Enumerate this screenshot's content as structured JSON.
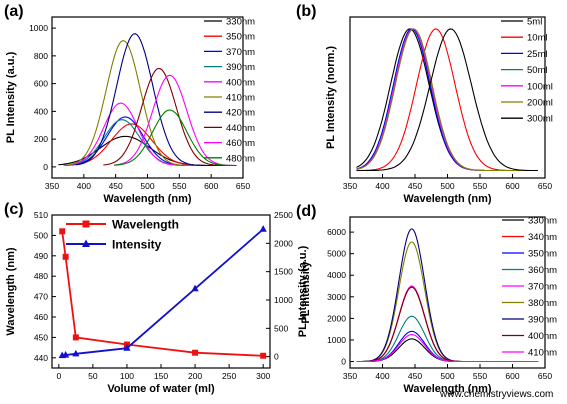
{
  "watermark": "www.chemistryviews.com",
  "colors": [
    "#000000",
    "#ff0000",
    "#0000ff",
    "#008080",
    "#ff00ff",
    "#808000",
    "#000080",
    "#800000",
    "#008000"
  ],
  "chart_data": [
    {
      "panel": "(a)",
      "type": "line",
      "xlabel": "Wavelength (nm)",
      "ylabel": "PL Intensity (a.u.)",
      "xlim": [
        350,
        650
      ],
      "ylim": [
        -80,
        1080
      ],
      "xticks": [
        350,
        400,
        450,
        500,
        550,
        600,
        650
      ],
      "yticks": [
        0,
        200,
        400,
        600,
        800,
        1000
      ],
      "legend_position": "top-right",
      "series": [
        {
          "name": "330nm",
          "color": "#000000",
          "peak": 465,
          "amp": 210,
          "w": 55
        },
        {
          "name": "350nm",
          "color": "#ff0000",
          "peak": 475,
          "amp": 300,
          "w": 45
        },
        {
          "name": "370nm",
          "color": "#0000ff",
          "peak": 465,
          "amp": 350,
          "w": 40
        },
        {
          "name": "390nm",
          "color": "#008080",
          "peak": 460,
          "amp": 330,
          "w": 40
        },
        {
          "name": "400nm",
          "color": "#ff00ff",
          "peak": 458,
          "amp": 450,
          "w": 38
        },
        {
          "name": "410nm",
          "color": "#808000",
          "peak": 462,
          "amp": 900,
          "w": 38
        },
        {
          "name": "420nm",
          "color": "#000080",
          "peak": 480,
          "amp": 950,
          "w": 40
        },
        {
          "name": "440nm",
          "color": "#800000",
          "peak": 518,
          "amp": 700,
          "w": 38
        },
        {
          "name": "460nm",
          "color": "#ff00ff",
          "peak": 535,
          "amp": 650,
          "w": 38
        },
        {
          "name": "480nm",
          "color": "#008000",
          "peak": 535,
          "amp": 400,
          "w": 38
        }
      ]
    },
    {
      "panel": "(b)",
      "type": "line",
      "xlabel": "Wavelength (nm)",
      "ylabel": "PL Intensity (norm.)",
      "xlim": [
        350,
        650
      ],
      "ylim": [
        0,
        1.08
      ],
      "xticks": [
        350,
        400,
        450,
        500,
        550,
        600,
        650
      ],
      "legend_position": "top-right",
      "series": [
        {
          "name": "5ml",
          "color": "#000000",
          "peak": 442,
          "w": 42
        },
        {
          "name": "10ml",
          "color": "#ff0000",
          "peak": 482,
          "w": 42
        },
        {
          "name": "25ml",
          "color": "#0000ff",
          "peak": 445,
          "w": 40
        },
        {
          "name": "50ml",
          "color": "#008080",
          "peak": 447,
          "w": 40
        },
        {
          "name": "100ml",
          "color": "#ff00ff",
          "peak": 447,
          "w": 40
        },
        {
          "name": "200ml",
          "color": "#808000",
          "peak": 448,
          "w": 40
        },
        {
          "name": "300ml",
          "color": "#000000",
          "peak": 505,
          "w": 45
        }
      ]
    },
    {
      "panel": "(c)",
      "type": "line",
      "xlabel": "Volume of water (ml)",
      "ylabel": "Wavelength (nm)",
      "y2label": "PL Intensity (a.u.)",
      "xlim": [
        -10,
        310
      ],
      "ylim": [
        435,
        510
      ],
      "y2lim": [
        -200,
        2500
      ],
      "xticks": [
        0,
        50,
        100,
        150,
        200,
        250,
        300
      ],
      "yticks": [
        440,
        450,
        460,
        470,
        480,
        490,
        500,
        510
      ],
      "y2ticks": [
        0,
        500,
        1000,
        1500,
        2000,
        2500
      ],
      "legend_position": "top-left",
      "series": [
        {
          "name": "Wavelength",
          "color": "#ee1111",
          "marker": "square",
          "axis": "left",
          "x": [
            5,
            10,
            25,
            100,
            200,
            300
          ],
          "y": [
            502,
            489.5,
            450,
            446.5,
            442.5,
            441
          ]
        },
        {
          "name": "Intensity",
          "color": "#1111cc",
          "marker": "triangle",
          "axis": "right",
          "x": [
            5,
            10,
            25,
            100,
            200,
            300
          ],
          "y": [
            20,
            30,
            50,
            150,
            1200,
            2250
          ]
        }
      ]
    },
    {
      "panel": "(d)",
      "type": "line",
      "xlabel": "Wavelength (nm)",
      "ylabel": "PL Intensity",
      "xlim": [
        350,
        650
      ],
      "ylim": [
        -300,
        6700
      ],
      "xticks": [
        350,
        400,
        450,
        500,
        550,
        600,
        650
      ],
      "yticks": [
        0,
        1000,
        2000,
        3000,
        4000,
        5000,
        6000
      ],
      "legend_position": "top-right",
      "series": [
        {
          "name": "330nm",
          "color": "#000000",
          "peak": 445,
          "amp": 1050,
          "w": 28
        },
        {
          "name": "340nm",
          "color": "#ff0000",
          "peak": 445,
          "amp": 3450,
          "w": 28
        },
        {
          "name": "350nm",
          "color": "#0000ff",
          "peak": 445,
          "amp": 1400,
          "w": 28
        },
        {
          "name": "360nm",
          "color": "#008080",
          "peak": 445,
          "amp": 2100,
          "w": 28
        },
        {
          "name": "370nm",
          "color": "#ff00ff",
          "peak": 445,
          "amp": 3500,
          "w": 28
        },
        {
          "name": "380nm",
          "color": "#808000",
          "peak": 445,
          "amp": 5550,
          "w": 28
        },
        {
          "name": "390nm",
          "color": "#000080",
          "peak": 445,
          "amp": 6150,
          "w": 28
        },
        {
          "name": "400nm",
          "color": "#800000",
          "peak": 445,
          "amp": 3450,
          "w": 28
        },
        {
          "name": "410nm",
          "color": "#ff00ff",
          "peak": 445,
          "amp": 1250,
          "w": 28
        }
      ]
    }
  ]
}
